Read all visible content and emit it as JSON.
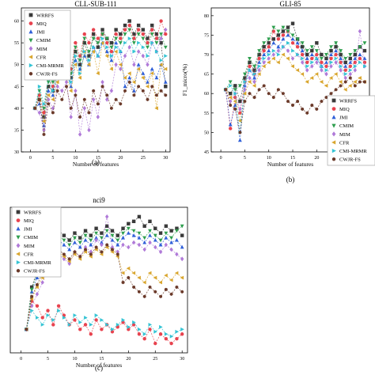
{
  "marker_styles": [
    "square",
    "circle",
    "triangle-up",
    "triangle-down",
    "diamond",
    "triangle-left",
    "triangle-right",
    "hexagon"
  ],
  "series_colors": [
    "#3a3a3a",
    "#e8434f",
    "#2f5fd8",
    "#2e9e4e",
    "#b07ad8",
    "#d9a62e",
    "#35c4d4",
    "#6b3a2a"
  ],
  "chart_data": [
    {
      "type": "scatter",
      "title": "CLL-SUB-111",
      "xlabel": "Number of features",
      "ylabel": "",
      "caption": "(a)",
      "xlim": [
        -2,
        31
      ],
      "ylim": [
        30,
        63
      ],
      "xticks": [
        0,
        5,
        10,
        15,
        20,
        25,
        30
      ],
      "yticks": [
        30,
        35,
        40,
        45,
        50,
        55,
        60
      ],
      "legend": "top-left",
      "x": [
        1,
        2,
        3,
        4,
        5,
        6,
        7,
        8,
        9,
        10,
        11,
        12,
        13,
        14,
        15,
        16,
        17,
        18,
        19,
        20,
        21,
        22,
        23,
        24,
        25,
        26,
        27,
        28,
        29,
        30
      ],
      "series": [
        {
          "name": "WRRFS",
          "values": [
            40,
            42,
            38,
            45,
            44,
            48,
            52,
            50,
            47,
            53,
            50,
            55,
            52,
            57,
            54,
            58,
            56,
            55,
            58,
            57,
            59,
            60,
            57,
            59,
            58,
            56,
            59,
            57,
            55,
            45
          ]
        },
        {
          "name": "MIQ",
          "values": [
            40,
            43,
            39,
            47,
            45,
            50,
            54,
            52,
            49,
            55,
            52,
            57,
            55,
            58,
            56,
            57,
            55,
            53,
            57,
            56,
            58,
            59,
            56,
            58,
            57,
            55,
            58,
            56,
            60,
            57
          ]
        },
        {
          "name": "JMI",
          "values": [
            40,
            41,
            36,
            44,
            43,
            47,
            50,
            48,
            45,
            51,
            49,
            52,
            50,
            54,
            52,
            55,
            53,
            51,
            55,
            53,
            45,
            47,
            44,
            50,
            48,
            46,
            49,
            47,
            50,
            46
          ]
        },
        {
          "name": "CMIM",
          "values": [
            40,
            44,
            40,
            46,
            46,
            49,
            53,
            51,
            48,
            54,
            51,
            56,
            53,
            56,
            55,
            57,
            56,
            54,
            56,
            55,
            57,
            58,
            55,
            57,
            56,
            54,
            57,
            55,
            57,
            54
          ]
        },
        {
          "name": "MIM",
          "values": [
            40,
            39,
            35,
            42,
            40,
            45,
            44,
            46,
            38,
            44,
            34,
            40,
            35,
            42,
            38,
            46,
            42,
            44,
            50,
            49,
            52,
            54,
            50,
            53,
            52,
            50,
            55,
            53,
            56,
            58
          ]
        },
        {
          "name": "CFR",
          "values": [
            40,
            42,
            37,
            43,
            42,
            46,
            49,
            47,
            44,
            50,
            47,
            53,
            50,
            53,
            48,
            55,
            52,
            49,
            53,
            50,
            47,
            48,
            46,
            49,
            47,
            45,
            48,
            40,
            50,
            49
          ]
        },
        {
          "name": "CMI-MRMR",
          "values": [
            40,
            45,
            41,
            47,
            44,
            48,
            51,
            49,
            46,
            52,
            48,
            53,
            51,
            54,
            52,
            56,
            54,
            52,
            54,
            53,
            55,
            56,
            53,
            55,
            54,
            52,
            55,
            53,
            51,
            52
          ]
        },
        {
          "name": "CWJR-FS",
          "values": [
            40,
            42,
            34,
            41,
            39,
            44,
            42,
            45,
            40,
            43,
            38,
            42,
            39,
            44,
            41,
            45,
            43,
            40,
            42,
            41,
            44,
            46,
            43,
            45,
            44,
            42,
            45,
            43,
            44,
            43
          ]
        }
      ]
    },
    {
      "type": "scatter",
      "title": "GLI-85",
      "xlabel": "Number of features",
      "ylabel": "F1_micro(%)",
      "caption": "(b)",
      "xlim": [
        -2,
        31
      ],
      "ylim": [
        45,
        82
      ],
      "xticks": [
        0,
        5,
        10,
        15,
        20,
        25,
        30
      ],
      "yticks": [
        45,
        50,
        55,
        60,
        65,
        70,
        75,
        80
      ],
      "legend": "right",
      "x": [
        1,
        2,
        3,
        4,
        5,
        6,
        7,
        8,
        9,
        10,
        11,
        12,
        13,
        14,
        15,
        16,
        17,
        18,
        19,
        20,
        21,
        22,
        23,
        24,
        25,
        26,
        27,
        28,
        29,
        30
      ],
      "series": [
        {
          "name": "WRRFS",
          "values": [
            61,
            60,
            62,
            58,
            64,
            68,
            66,
            70,
            72,
            73,
            74,
            75,
            76,
            77,
            78,
            74,
            72,
            70,
            71,
            73,
            70,
            69,
            71,
            72,
            70,
            68,
            69,
            70,
            72,
            71
          ]
        },
        {
          "name": "MIQ",
          "values": [
            61,
            51,
            59,
            55,
            63,
            67,
            65,
            69,
            71,
            72,
            76,
            74,
            75,
            76,
            73,
            72,
            70,
            68,
            69,
            70,
            68,
            67,
            69,
            70,
            68,
            66,
            67,
            68,
            69,
            68
          ]
        },
        {
          "name": "JMI",
          "values": [
            61,
            52,
            57,
            48,
            62,
            66,
            64,
            68,
            70,
            71,
            73,
            72,
            74,
            75,
            74,
            73,
            71,
            69,
            70,
            69,
            67,
            68,
            70,
            71,
            69,
            67,
            68,
            69,
            70,
            69
          ]
        },
        {
          "name": "CMIM",
          "values": [
            61,
            63,
            61,
            62,
            65,
            69,
            67,
            71,
            73,
            74,
            77,
            76,
            77,
            76,
            75,
            74,
            73,
            71,
            72,
            71,
            69,
            70,
            72,
            73,
            71,
            69,
            70,
            71,
            72,
            73
          ]
        },
        {
          "name": "MIM",
          "values": [
            61,
            58,
            60,
            56,
            61,
            64,
            63,
            66,
            68,
            69,
            70,
            71,
            72,
            71,
            69,
            70,
            68,
            66,
            67,
            68,
            66,
            65,
            67,
            68,
            66,
            64,
            65,
            66,
            76,
            67
          ]
        },
        {
          "name": "CFR",
          "values": [
            61,
            59,
            58,
            53,
            60,
            63,
            62,
            65,
            67,
            68,
            69,
            68,
            70,
            69,
            67,
            66,
            65,
            63,
            64,
            65,
            63,
            62,
            64,
            65,
            63,
            61,
            62,
            63,
            64,
            63
          ]
        },
        {
          "name": "CMI-MRMR",
          "values": [
            61,
            62,
            60,
            50,
            63,
            66,
            65,
            67,
            69,
            70,
            71,
            70,
            72,
            73,
            71,
            70,
            69,
            67,
            68,
            69,
            67,
            66,
            68,
            69,
            67,
            65,
            66,
            67,
            68,
            67
          ]
        },
        {
          "name": "CWJR-FS",
          "values": [
            61,
            57,
            56,
            50,
            58,
            60,
            59,
            61,
            62,
            60,
            59,
            61,
            60,
            58,
            57,
            58,
            56,
            55,
            57,
            56,
            58,
            59,
            60,
            61,
            62,
            63,
            64,
            62,
            63,
            63
          ]
        }
      ]
    },
    {
      "type": "scatter",
      "title": "nci9",
      "xlabel": "Number of features",
      "ylabel": "",
      "caption": "(c)",
      "xlim": [
        -2,
        31
      ],
      "ylim": [
        10,
        72
      ],
      "xticks": [
        0,
        5,
        10,
        15,
        20,
        25,
        30
      ],
      "yticks": [],
      "legend": "top-left",
      "x": [
        1,
        2,
        3,
        4,
        5,
        6,
        7,
        8,
        9,
        10,
        11,
        12,
        13,
        14,
        15,
        16,
        17,
        18,
        19,
        20,
        21,
        22,
        23,
        24,
        25,
        26,
        27,
        28,
        29,
        30
      ],
      "series": [
        {
          "name": "WRRFS",
          "values": [
            20,
            38,
            45,
            52,
            55,
            58,
            62,
            60,
            58,
            61,
            59,
            62,
            60,
            63,
            61,
            64,
            62,
            60,
            63,
            65,
            66,
            68,
            64,
            66,
            63,
            61,
            64,
            62,
            63,
            60
          ]
        },
        {
          "name": "MIQ",
          "values": [
            20,
            32,
            30,
            25,
            28,
            22,
            30,
            26,
            22,
            24,
            20,
            22,
            18,
            24,
            20,
            22,
            19,
            21,
            23,
            20,
            22,
            18,
            16,
            20,
            14,
            18,
            16,
            14,
            16,
            18
          ]
        },
        {
          "name": "JMI",
          "values": [
            20,
            36,
            42,
            48,
            52,
            55,
            58,
            56,
            54,
            57,
            55,
            58,
            56,
            59,
            57,
            60,
            58,
            56,
            59,
            61,
            60,
            59,
            57,
            60,
            58,
            56,
            59,
            57,
            58,
            55
          ]
        },
        {
          "name": "CMIM",
          "values": [
            20,
            37,
            44,
            50,
            54,
            57,
            60,
            58,
            56,
            59,
            57,
            60,
            58,
            61,
            59,
            62,
            60,
            58,
            61,
            63,
            62,
            61,
            59,
            62,
            60,
            58,
            61,
            59,
            62,
            64
          ]
        },
        {
          "name": "MIM",
          "values": [
            20,
            30,
            35,
            40,
            45,
            48,
            52,
            50,
            48,
            53,
            51,
            55,
            53,
            58,
            56,
            68,
            55,
            53,
            56,
            55,
            57,
            56,
            54,
            57,
            55,
            53,
            56,
            54,
            52,
            50
          ]
        },
        {
          "name": "CFR",
          "values": [
            20,
            33,
            38,
            42,
            46,
            49,
            53,
            51,
            49,
            52,
            50,
            53,
            51,
            54,
            52,
            55,
            53,
            51,
            44,
            46,
            44,
            42,
            40,
            44,
            42,
            40,
            43,
            41,
            44,
            42
          ]
        },
        {
          "name": "CMI-MRMR",
          "values": [
            20,
            28,
            25,
            22,
            26,
            24,
            28,
            25,
            22,
            26,
            23,
            25,
            22,
            26,
            24,
            22,
            20,
            22,
            24,
            21,
            23,
            20,
            18,
            22,
            19,
            21,
            18,
            17,
            19,
            20
          ]
        },
        {
          "name": "CWJR-FS",
          "values": [
            20,
            34,
            39,
            44,
            48,
            50,
            54,
            52,
            50,
            53,
            51,
            54,
            52,
            55,
            53,
            56,
            54,
            52,
            40,
            42,
            38,
            36,
            34,
            38,
            36,
            34,
            37,
            35,
            38,
            36
          ]
        }
      ]
    }
  ]
}
